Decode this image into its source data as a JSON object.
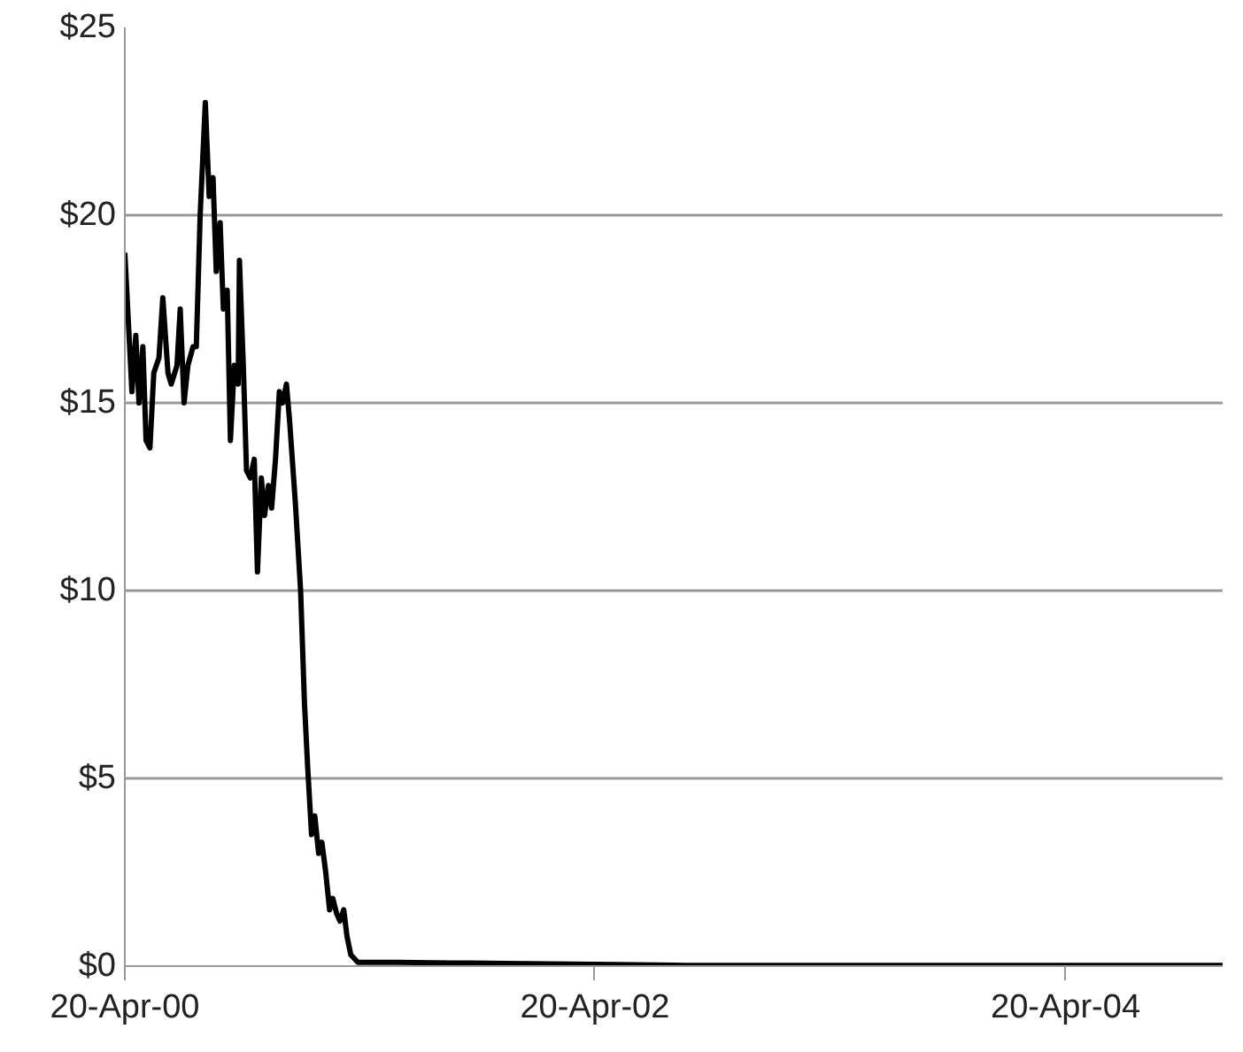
{
  "chart_data": {
    "type": "line",
    "x": [
      "2000-04-20",
      "2000-05-01",
      "2000-05-07",
      "2000-05-12",
      "2000-05-18",
      "2000-05-23",
      "2000-05-29",
      "2000-06-04",
      "2000-06-12",
      "2000-06-18",
      "2000-06-26",
      "2000-07-01",
      "2000-07-10",
      "2000-07-15",
      "2000-07-21",
      "2000-07-27",
      "2000-08-04",
      "2000-08-09",
      "2000-08-15",
      "2000-08-23",
      "2000-08-29",
      "2000-09-04",
      "2000-09-09",
      "2000-09-15",
      "2000-09-20",
      "2000-09-26",
      "2000-10-01",
      "2000-10-07",
      "2000-10-13",
      "2000-10-15",
      "2000-10-21",
      "2000-10-26",
      "2000-11-01",
      "2000-11-07",
      "2000-11-12",
      "2000-11-18",
      "2000-11-23",
      "2000-11-29",
      "2000-12-04",
      "2000-12-10",
      "2000-12-16",
      "2000-12-21",
      "2000-12-27",
      "2001-01-01",
      "2001-01-10",
      "2001-01-18",
      "2001-01-24",
      "2001-01-29",
      "2001-02-04",
      "2001-02-09",
      "2001-02-15",
      "2001-02-20",
      "2001-02-26",
      "2001-03-04",
      "2001-03-09",
      "2001-03-15",
      "2001-03-20",
      "2001-03-26",
      "2001-03-31",
      "2001-04-06",
      "2001-04-17",
      "2001-06-17",
      "2001-10-07",
      "2001-12-02",
      "2002-04-20",
      "2002-09-06",
      "2004-12-20"
    ],
    "series": [
      {
        "color": "#000000",
        "values": [
          19.0,
          15.3,
          16.8,
          15.0,
          16.5,
          14.0,
          13.8,
          15.8,
          16.2,
          17.8,
          15.8,
          15.5,
          16.0,
          17.5,
          15.0,
          16.0,
          16.5,
          16.5,
          20.0,
          23.0,
          20.5,
          21.0,
          18.5,
          19.8,
          17.5,
          18.0,
          14.0,
          16.0,
          15.5,
          18.8,
          16.0,
          13.2,
          13.0,
          13.5,
          10.5,
          13.0,
          12.0,
          12.8,
          12.2,
          13.5,
          15.3,
          15.0,
          15.5,
          14.5,
          12.3,
          10.0,
          7.0,
          5.3,
          3.5,
          4.0,
          3.0,
          3.3,
          2.5,
          1.5,
          1.8,
          1.4,
          1.2,
          1.5,
          0.8,
          0.3,
          0.1,
          0.1,
          0.08,
          0.07,
          0.05,
          0.02,
          0.02
        ]
      }
    ],
    "xlim": [
      "2000-04-20",
      "2004-12-20"
    ],
    "xticks": [
      {
        "value": "2000-04-20",
        "label": "20-Apr-00"
      },
      {
        "value": "2002-04-20",
        "label": "20-Apr-02"
      },
      {
        "value": "2004-04-20",
        "label": "20-Apr-04"
      }
    ],
    "ylim": [
      0,
      25
    ],
    "yticks": [
      {
        "value": 0,
        "label": "$0"
      },
      {
        "value": 5,
        "label": "$5"
      },
      {
        "value": 10,
        "label": "$10"
      },
      {
        "value": 15,
        "label": "$15"
      },
      {
        "value": 20,
        "label": "$20"
      },
      {
        "value": 25,
        "label": "$25"
      }
    ],
    "grid": "y",
    "marker": "none",
    "line_style": "solid"
  }
}
